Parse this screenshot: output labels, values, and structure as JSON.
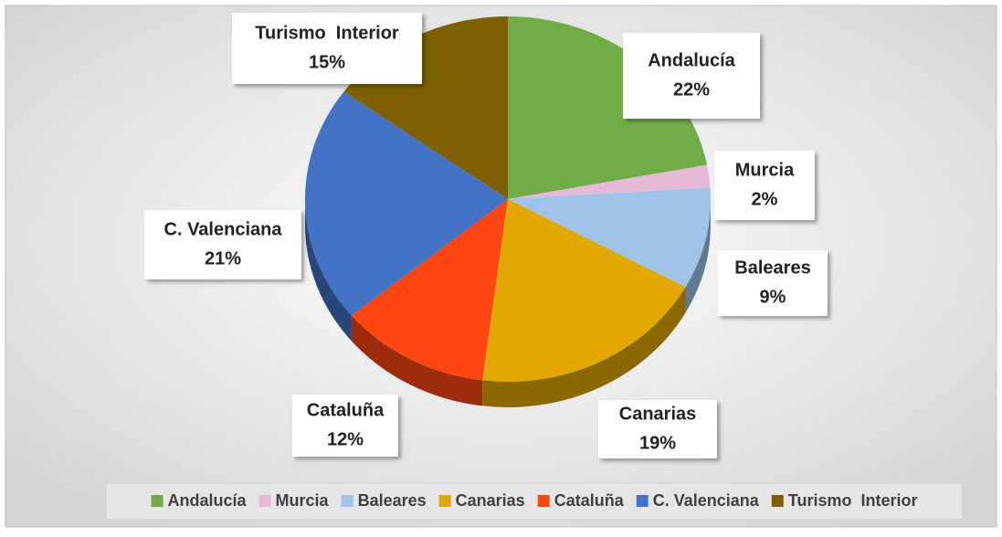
{
  "chart_data": {
    "type": "pie",
    "categories": [
      "Andalucía",
      "Murcia",
      "Baleares",
      "Canarias",
      "Cataluña",
      "C. Valenciana",
      "Turismo  Interior"
    ],
    "values": [
      22,
      2,
      9,
      19,
      12,
      21,
      15
    ],
    "value_labels": [
      "22%",
      "2%",
      "9%",
      "19%",
      "12%",
      "21%",
      "15%"
    ],
    "colors": [
      "#70ad47",
      "#e6b9d8",
      "#9dc3e6",
      "#e0a800",
      "#ff4713",
      "#4472c4",
      "#7f6000"
    ],
    "legend": "bottom"
  }
}
